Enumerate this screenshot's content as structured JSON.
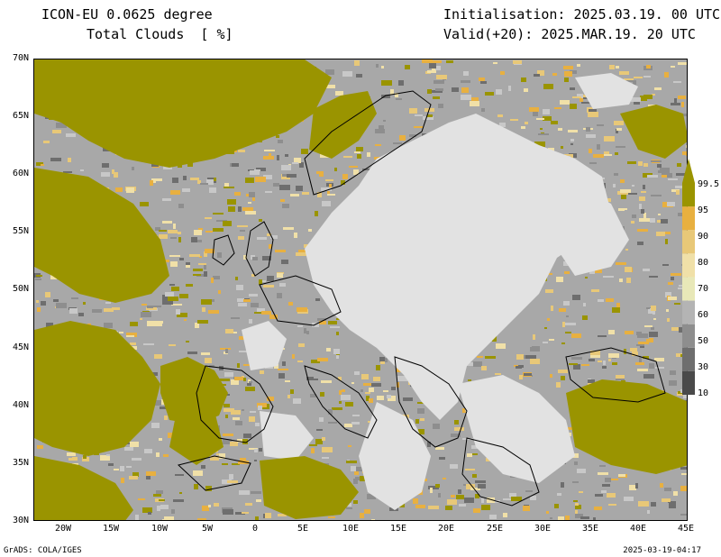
{
  "header": {
    "title_line1": "ICON-EU 0.0625 degree",
    "title_line2": "Total Clouds  [ %]",
    "init_line": "Initialisation: 2025.03.19. 00 UTC",
    "valid_line": "Valid(+20): 2025.MAR.19. 20 UTC"
  },
  "map": {
    "lat_labels": [
      "70N",
      "65N",
      "60N",
      "55N",
      "50N",
      "45N",
      "40N",
      "35N",
      "30N"
    ],
    "lon_labels": [
      "20W",
      "15W",
      "10W",
      "5W",
      "0",
      "5E",
      "10E",
      "15E",
      "20E",
      "25E",
      "30E",
      "35E",
      "40E",
      "45E"
    ],
    "lat_range": [
      30,
      70
    ],
    "lon_range": [
      -23,
      45
    ],
    "colors": {
      "clear": "#e6e6e6",
      "overcast": "#9a9400",
      "coast": "#000000"
    }
  },
  "colorbar": {
    "labels": [
      "99.5",
      "95",
      "90",
      "80",
      "70",
      "60",
      "50",
      "30",
      "10"
    ],
    "bands": [
      "#4a4a4a",
      "#6e6e6e",
      "#8e8e8e",
      "#b4b4b4",
      "#e8e8b8",
      "#f0e0a8",
      "#e8c878",
      "#e8b040",
      "#9a9400"
    ]
  },
  "footer": {
    "left": "GrADS: COLA/IGES",
    "right": "2025-03-19-04:17"
  }
}
